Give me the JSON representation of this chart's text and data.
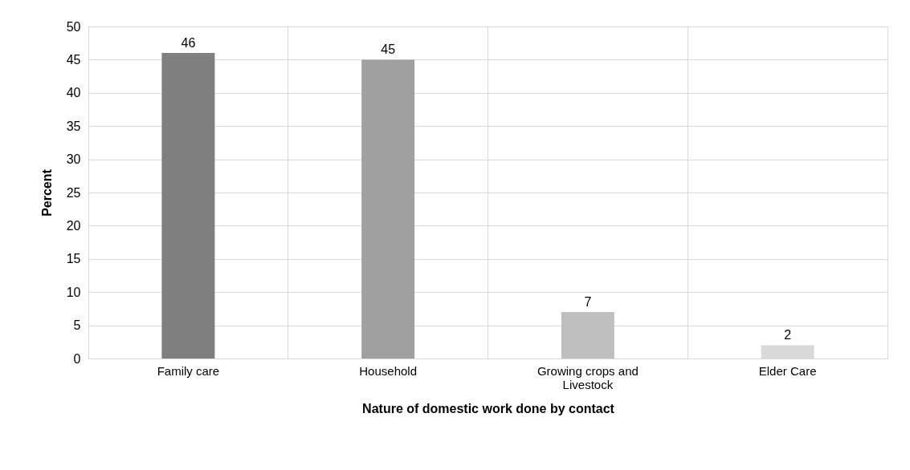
{
  "chart_data": {
    "type": "bar",
    "xlabel": "Nature of domestic work done by contact",
    "ylabel": "Percent",
    "categories": [
      "Family care",
      "Household",
      "Growing crops and Livestock",
      "Elder Care"
    ],
    "values": [
      46,
      45,
      7,
      2
    ],
    "colors": [
      "#7f7f7f",
      "#a0a0a0",
      "#bfbfbf",
      "#d9d9d9"
    ],
    "ylim": [
      0,
      50
    ],
    "yticks": [
      0,
      5,
      10,
      15,
      20,
      25,
      30,
      35,
      40,
      45,
      50
    ],
    "grid": true,
    "data_labels": true
  }
}
